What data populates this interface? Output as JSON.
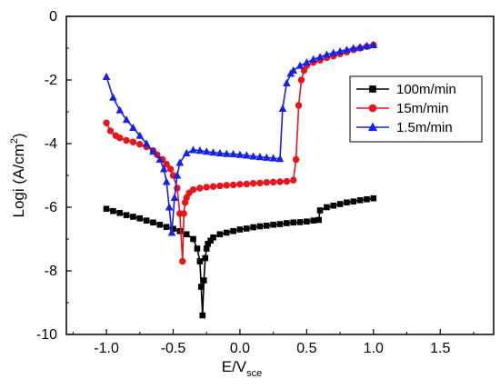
{
  "chart_data": {
    "type": "line",
    "title": "",
    "xlabel": {
      "main": "E/V",
      "sub": "sce"
    },
    "ylabel": {
      "main": "Logi (A/cm",
      "sup": "2",
      "tail": ")"
    },
    "xlim": [
      -1.3,
      1.9
    ],
    "ylim": [
      -10,
      0
    ],
    "xticks": [
      "-1.0",
      "-0.5",
      "0.0",
      "0.5",
      "1.0",
      "1.5"
    ],
    "yticks": [
      "0",
      "-2",
      "-4",
      "-6",
      "-8",
      "-10"
    ],
    "xtick_values": [
      -1.0,
      -0.5,
      0.0,
      0.5,
      1.0,
      1.5
    ],
    "ytick_values": [
      0,
      -2,
      -4,
      -6,
      -8,
      -10
    ],
    "grid": false,
    "legend_position": "top-right",
    "series": [
      {
        "name": "100m/min",
        "color": "#000000",
        "marker": "square",
        "x": [
          -1.0,
          -0.95,
          -0.9,
          -0.85,
          -0.8,
          -0.75,
          -0.7,
          -0.65,
          -0.6,
          -0.55,
          -0.5,
          -0.45,
          -0.4,
          -0.35,
          -0.32,
          -0.3,
          -0.29,
          -0.28,
          -0.27,
          -0.26,
          -0.25,
          -0.24,
          -0.22,
          -0.2,
          -0.15,
          -0.1,
          -0.05,
          0.0,
          0.05,
          0.1,
          0.15,
          0.2,
          0.25,
          0.3,
          0.35,
          0.4,
          0.45,
          0.5,
          0.55,
          0.59,
          0.6,
          0.65,
          0.7,
          0.75,
          0.8,
          0.85,
          0.9,
          0.95,
          1.0
        ],
        "y": [
          -6.05,
          -6.12,
          -6.18,
          -6.25,
          -6.3,
          -6.35,
          -6.42,
          -6.48,
          -6.55,
          -6.62,
          -6.68,
          -6.75,
          -6.85,
          -7.0,
          -7.3,
          -7.7,
          -8.5,
          -9.4,
          -8.3,
          -7.6,
          -7.3,
          -7.15,
          -7.05,
          -6.95,
          -6.85,
          -6.8,
          -6.75,
          -6.7,
          -6.67,
          -6.63,
          -6.6,
          -6.58,
          -6.55,
          -6.53,
          -6.5,
          -6.48,
          -6.47,
          -6.45,
          -6.42,
          -6.4,
          -6.1,
          -6.0,
          -5.95,
          -5.9,
          -5.85,
          -5.82,
          -5.78,
          -5.75,
          -5.72
        ]
      },
      {
        "name": "15m/min",
        "color": "#e8151b",
        "marker": "circle",
        "x": [
          -1.0,
          -0.97,
          -0.93,
          -0.9,
          -0.85,
          -0.8,
          -0.75,
          -0.7,
          -0.65,
          -0.62,
          -0.58,
          -0.55,
          -0.52,
          -0.5,
          -0.47,
          -0.45,
          -0.43,
          -0.42,
          -0.41,
          -0.4,
          -0.38,
          -0.35,
          -0.3,
          -0.25,
          -0.2,
          -0.15,
          -0.1,
          -0.05,
          0.0,
          0.05,
          0.1,
          0.15,
          0.2,
          0.25,
          0.3,
          0.35,
          0.4,
          0.42,
          0.44,
          0.46,
          0.48,
          0.5,
          0.55,
          0.6,
          0.65,
          0.7,
          0.75,
          0.8,
          0.85,
          0.9,
          0.95,
          1.0
        ],
        "y": [
          -3.35,
          -3.6,
          -3.75,
          -3.82,
          -3.9,
          -3.95,
          -4.02,
          -4.1,
          -4.22,
          -4.35,
          -4.5,
          -4.65,
          -4.8,
          -5.0,
          -5.4,
          -6.2,
          -7.7,
          -6.2,
          -5.85,
          -5.7,
          -5.55,
          -5.45,
          -5.4,
          -5.37,
          -5.35,
          -5.33,
          -5.31,
          -5.3,
          -5.28,
          -5.27,
          -5.25,
          -5.24,
          -5.22,
          -5.21,
          -5.2,
          -5.19,
          -5.15,
          -4.5,
          -2.8,
          -2.0,
          -1.7,
          -1.55,
          -1.45,
          -1.38,
          -1.3,
          -1.25,
          -1.18,
          -1.12,
          -1.05,
          -1.0,
          -0.95,
          -0.9
        ]
      },
      {
        "name": "1.5m/min",
        "color": "#1520e8",
        "marker": "triangle",
        "x": [
          -1.0,
          -0.95,
          -0.9,
          -0.85,
          -0.8,
          -0.75,
          -0.7,
          -0.65,
          -0.6,
          -0.57,
          -0.55,
          -0.53,
          -0.51,
          -0.49,
          -0.47,
          -0.45,
          -0.4,
          -0.35,
          -0.3,
          -0.25,
          -0.2,
          -0.15,
          -0.1,
          -0.05,
          0.0,
          0.05,
          0.1,
          0.15,
          0.2,
          0.25,
          0.3,
          0.32,
          0.35,
          0.38,
          0.4,
          0.45,
          0.5,
          0.55,
          0.6,
          0.65,
          0.7,
          0.75,
          0.8,
          0.85,
          0.9,
          0.95,
          1.0
        ],
        "y": [
          -1.9,
          -2.55,
          -2.95,
          -3.25,
          -3.5,
          -3.75,
          -4.0,
          -4.25,
          -4.5,
          -4.8,
          -5.2,
          -6.0,
          -6.8,
          -5.7,
          -5.0,
          -4.6,
          -4.3,
          -4.2,
          -4.22,
          -4.25,
          -4.28,
          -4.3,
          -4.32,
          -4.33,
          -4.35,
          -4.37,
          -4.4,
          -4.42,
          -4.44,
          -4.46,
          -4.48,
          -2.9,
          -2.1,
          -1.8,
          -1.7,
          -1.55,
          -1.45,
          -1.35,
          -1.28,
          -1.2,
          -1.15,
          -1.1,
          -1.05,
          -1.0,
          -0.97,
          -0.93,
          -0.9
        ]
      }
    ]
  }
}
